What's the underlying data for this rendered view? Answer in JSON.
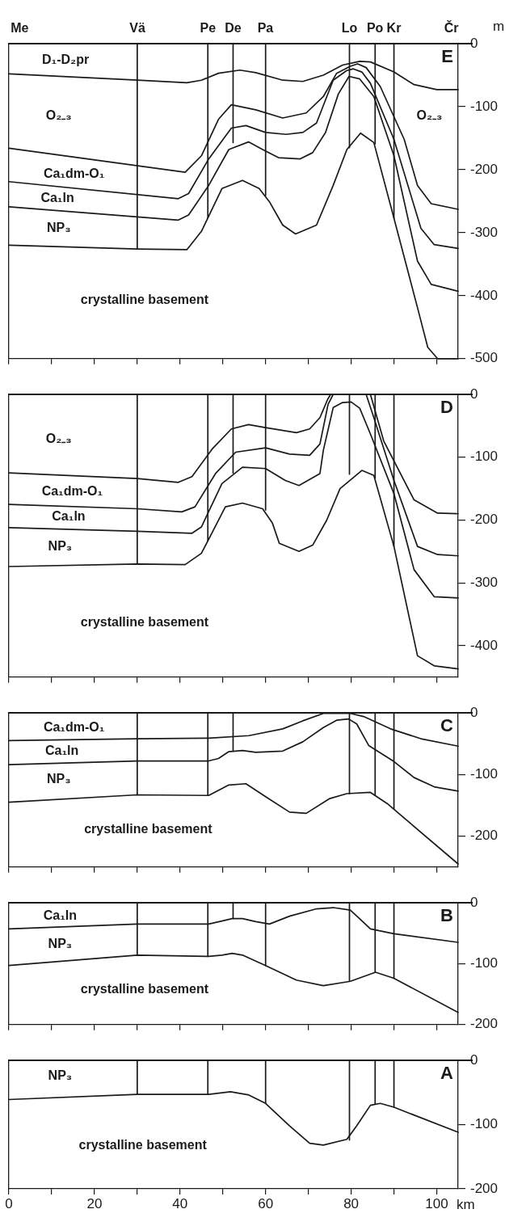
{
  "chart_data": [
    {
      "type": "line",
      "title": "E",
      "ylabel": "m",
      "xlim": [
        0,
        105
      ],
      "ylim": [
        -500,
        0
      ],
      "yticks": [
        0,
        -100,
        -200,
        -300,
        -400,
        -500
      ],
      "tick_labels": "y",
      "grid": false,
      "xticks": [
        0,
        {
          "value": 10,
          "label": null
        },
        20,
        {
          "value": 30,
          "label": null
        },
        40,
        {
          "value": 50,
          "label": null
        },
        60,
        {
          "value": 70,
          "label": null
        },
        80,
        {
          "value": 90,
          "label": null
        },
        100
      ],
      "series": [
        {
          "color": "#1a1a1a",
          "x": [
            0,
            30,
            41.6,
            45,
            49,
            54,
            57.7,
            64,
            68.7,
            73.5,
            78,
            82,
            84.5,
            90,
            94.7,
            100,
            105
          ],
          "values": [
            -48,
            -58,
            -62,
            -58,
            -47,
            -42,
            -46,
            -58,
            -60,
            -50,
            -34,
            -28,
            -29,
            -45,
            -65,
            -73,
            -73
          ]
        },
        {
          "color": "#1a1a1a",
          "x": [
            0,
            41.2,
            45,
            49,
            52,
            57.7,
            64,
            69.5,
            73.5,
            76.6,
            79.8,
            81.5,
            83.5,
            86.8,
            92.4,
            95.5,
            98.7,
            105
          ],
          "values": [
            -166,
            -204,
            -178,
            -120,
            -97,
            -105,
            -118,
            -110,
            -84,
            -47,
            -36,
            -32,
            -38,
            -68,
            -152,
            -225,
            -254,
            -263
          ]
        },
        {
          "color": "#1a1a1a",
          "x": [
            0,
            39.6,
            42,
            46.7,
            52,
            55.4,
            60,
            64.8,
            68.7,
            71.9,
            75.8,
            78.9,
            80.5,
            82.5,
            84.5,
            90,
            96.3,
            99.4,
            105
          ],
          "values": [
            -219,
            -246,
            -238,
            -183,
            -134,
            -130,
            -141,
            -144,
            -141,
            -126,
            -58,
            -43,
            -40,
            -45,
            -63,
            -152,
            -293,
            -319,
            -325
          ]
        },
        {
          "color": "#1a1a1a",
          "x": [
            0,
            39.6,
            42,
            46.7,
            51.4,
            56,
            59.3,
            63,
            68,
            71,
            74,
            77,
            79.5,
            82,
            85.3,
            90,
            95.5,
            98.7,
            105
          ],
          "values": [
            -259,
            -280,
            -272,
            -225,
            -168,
            -156,
            -168,
            -181,
            -183,
            -173,
            -141,
            -80,
            -52,
            -56,
            -84,
            -178,
            -345,
            -382,
            -393
          ]
        },
        {
          "color": "#1a1a1a",
          "x": [
            0,
            30,
            41.6,
            45,
            49.8,
            54.6,
            58.5,
            60.9,
            64,
            67,
            71.9,
            75.8,
            79,
            82.2,
            85.3,
            90,
            95.5,
            97.9,
            100.2,
            105
          ],
          "values": [
            -320,
            -326,
            -327,
            -298,
            -230,
            -217,
            -230,
            -251,
            -288,
            -302,
            -288,
            -225,
            -168,
            -142,
            -157,
            -277,
            -419,
            -482,
            -500,
            -500
          ]
        },
        {
          "color": "#1a1a1a",
          "x": [
            30,
            30
          ],
          "values": [
            0,
            -326
          ]
        },
        {
          "color": "#1a1a1a",
          "x": [
            46.5,
            46.5
          ],
          "values": [
            0,
            -276
          ]
        },
        {
          "color": "#1a1a1a",
          "x": [
            52.4,
            52.4
          ],
          "values": [
            0,
            -157
          ]
        },
        {
          "color": "#1a1a1a",
          "x": [
            60,
            60
          ],
          "values": [
            0,
            -241
          ]
        },
        {
          "color": "#1a1a1a",
          "x": [
            79.6,
            79.6
          ],
          "values": [
            0,
            -165
          ]
        },
        {
          "color": "#1a1a1a",
          "x": [
            85.6,
            85.6
          ],
          "values": [
            0,
            -159
          ]
        },
        {
          "color": "#1a1a1a",
          "x": [
            90,
            90
          ],
          "values": [
            0,
            -277
          ]
        }
      ],
      "annotations": [
        "D₁-D₂pr",
        "O₂₋₃",
        "Ca₁dm-O₁",
        "Ca₁ln",
        "NP₃",
        "crystalline basement",
        "O₂₋₃",
        "Me",
        "Vä",
        "Pe",
        "De",
        "Pa",
        "Lo",
        "Po",
        "Kr",
        "Čr"
      ]
    },
    {
      "type": "line",
      "title": "D",
      "xlim": [
        0,
        105
      ],
      "ylim": [
        -450,
        0
      ],
      "yticks": [
        0,
        -100,
        -200,
        -300,
        -400
      ],
      "tick_labels": "y",
      "grid": false,
      "xticks": [
        0,
        {
          "value": 10,
          "label": null
        },
        20,
        {
          "value": 30,
          "label": null
        },
        40,
        {
          "value": 50,
          "label": null
        },
        60,
        {
          "value": 70,
          "label": null
        },
        80,
        {
          "value": 90,
          "label": null
        },
        100
      ],
      "series": [
        {
          "color": "#1a1a1a",
          "x": [
            0,
            30,
            39.6,
            42.8,
            47.5,
            52,
            56,
            60,
            67.2,
            70.3,
            72.7,
            74.5,
            75.2,
            79.5,
            84.5,
            87.6,
            94.7,
            100.2,
            105
          ],
          "values": [
            -125,
            -134,
            -140,
            -131,
            -87,
            -55,
            -48,
            -53,
            -61,
            -55,
            -37,
            -8,
            0,
            null,
            0,
            -74,
            -168,
            -189,
            -190
          ]
        },
        {
          "color": "#1a1a1a",
          "x": [
            0,
            30,
            40.4,
            43.5,
            48.3,
            53,
            60,
            65.6,
            70.3,
            72.7,
            74.6,
            75.8,
            79.5,
            83.5,
            85.3,
            90,
            95.5,
            100.2,
            105
          ],
          "values": [
            -175,
            -182,
            -187,
            -179,
            -126,
            -92,
            -85,
            -95,
            -97,
            -79,
            -16,
            0,
            null,
            0,
            -37,
            -137,
            -242,
            -255,
            -257
          ]
        },
        {
          "color": "#1a1a1a",
          "x": [
            0,
            30,
            42.8,
            45,
            49.8,
            54.6,
            60,
            64.6,
            67.8,
            72.7,
            73.5,
            75.8,
            78,
            80,
            82,
            84.5,
            90,
            94.7,
            99.4,
            105
          ],
          "values": [
            -212,
            -218,
            -221,
            -211,
            -142,
            -116,
            -118,
            -137,
            -145,
            -126,
            -89,
            -21,
            -13,
            -12,
            -22,
            -63,
            -158,
            -279,
            -322,
            -324
          ]
        },
        {
          "color": "#1a1a1a",
          "x": [
            0,
            30,
            41.2,
            45,
            50.6,
            54.6,
            59.3,
            61.6,
            63.2,
            67.8,
            71,
            74.3,
            77.4,
            82.5,
            85.3,
            90,
            95.5,
            99.4,
            105
          ],
          "values": [
            -274,
            -270,
            -271,
            -253,
            -179,
            -173,
            -182,
            -205,
            -237,
            -250,
            -240,
            -200,
            -150,
            -121,
            -129,
            -242,
            -416,
            -432,
            -437
          ]
        },
        {
          "color": "#1a1a1a",
          "x": [
            30,
            30
          ],
          "values": [
            0,
            -270
          ]
        },
        {
          "color": "#1a1a1a",
          "x": [
            46.5,
            46.5
          ],
          "values": [
            0,
            -233
          ]
        },
        {
          "color": "#1a1a1a",
          "x": [
            52.4,
            52.4
          ],
          "values": [
            0,
            -125
          ]
        },
        {
          "color": "#1a1a1a",
          "x": [
            60,
            60
          ],
          "values": [
            0,
            -184
          ]
        },
        {
          "color": "#1a1a1a",
          "x": [
            79.6,
            79.6
          ],
          "values": [
            0,
            -127
          ]
        },
        {
          "color": "#1a1a1a",
          "x": [
            85.6,
            85.6
          ],
          "values": [
            0,
            -133
          ]
        },
        {
          "color": "#1a1a1a",
          "x": [
            90,
            90
          ],
          "values": [
            0,
            -242
          ]
        }
      ],
      "annotations": [
        "O₂₋₃",
        "Ca₁dm-O₁",
        "Ca₁ln",
        "NP₃",
        "crystalline basement"
      ]
    },
    {
      "type": "line",
      "title": "C",
      "xlim": [
        0,
        105
      ],
      "ylim": [
        -250,
        0
      ],
      "yticks": [
        0,
        -100,
        -200
      ],
      "tick_labels": "y",
      "grid": false,
      "xticks": [
        0,
        {
          "value": 10,
          "label": null
        },
        20,
        {
          "value": 30,
          "label": null
        },
        40,
        {
          "value": 50,
          "label": null
        },
        60,
        {
          "value": 70,
          "label": null
        },
        80,
        {
          "value": 90,
          "label": null
        },
        100
      ],
      "series": [
        {
          "color": "#1a1a1a",
          "x": [
            0,
            30,
            46.7,
            56.1,
            64,
            68.7,
            73.5,
            79.8,
            82.9,
            89.2,
            96.3,
            105
          ],
          "values": [
            -45,
            -42,
            -41,
            -37,
            -26,
            -13,
            -1,
            -1,
            -6,
            -26,
            -42,
            -54
          ]
        },
        {
          "color": "#1a1a1a",
          "x": [
            0,
            30,
            46.7,
            49,
            51.4,
            54.6,
            57.7,
            64,
            68.7,
            73.5,
            76.6,
            79.4,
            81.3,
            84.1,
            90,
            94.7,
            99.4,
            105
          ],
          "values": [
            -84,
            -78,
            -78,
            -74,
            -63,
            -61,
            -64,
            -62,
            -47,
            -24,
            -12,
            -10,
            -18,
            -53,
            -79,
            -105,
            -120,
            -127
          ]
        },
        {
          "color": "#1a1a1a",
          "x": [
            0,
            30,
            46.7,
            51.4,
            55.4,
            60,
            65.6,
            69.5,
            75,
            79,
            84.5,
            88.4,
            105
          ],
          "values": [
            -145,
            -133,
            -134,
            -117,
            -115,
            -136,
            -161,
            -163,
            -139,
            -131,
            -129,
            -147,
            -245
          ]
        },
        {
          "color": "#1a1a1a",
          "x": [
            30,
            30
          ],
          "values": [
            0,
            -133
          ]
        },
        {
          "color": "#1a1a1a",
          "x": [
            46.5,
            46.5
          ],
          "values": [
            0,
            -134
          ]
        },
        {
          "color": "#1a1a1a",
          "x": [
            52.4,
            52.4
          ],
          "values": [
            0,
            -62
          ]
        },
        {
          "color": "#1a1a1a",
          "x": [
            79.6,
            79.6
          ],
          "values": [
            0,
            -131
          ]
        },
        {
          "color": "#1a1a1a",
          "x": [
            85.6,
            85.6
          ],
          "values": [
            0,
            -134
          ]
        },
        {
          "color": "#1a1a1a",
          "x": [
            90,
            90
          ],
          "values": [
            0,
            -156
          ]
        }
      ],
      "annotations": [
        "Ca₁dm-O₁",
        "Ca₁ln",
        "NP₃",
        "crystalline basement"
      ]
    },
    {
      "type": "line",
      "title": "B",
      "xlim": [
        0,
        105
      ],
      "ylim": [
        -200,
        0
      ],
      "yticks": [
        0,
        -100,
        -200
      ],
      "tick_labels": "y",
      "grid": false,
      "xticks": [
        0,
        {
          "value": 10,
          "label": null
        },
        20,
        {
          "value": 30,
          "label": null
        },
        40,
        {
          "value": 50,
          "label": null
        },
        60,
        {
          "value": 70,
          "label": null
        },
        80,
        {
          "value": 90,
          "label": null
        },
        100
      ],
      "series": [
        {
          "color": "#1a1a1a",
          "x": [
            0,
            30,
            46.7,
            49.8,
            52.2,
            54.6,
            57.7,
            60.9,
            65.6,
            71.9,
            75.8,
            79.8,
            82.1,
            84.5,
            90,
            105
          ],
          "values": [
            -43,
            -35,
            -35,
            -30,
            -26,
            -26,
            -31,
            -35,
            -22,
            -10,
            -8,
            -12,
            -27,
            -43,
            -51,
            -65
          ]
        },
        {
          "color": "#1a1a1a",
          "x": [
            0,
            30,
            46.7,
            49.8,
            52.2,
            54.6,
            60,
            67.2,
            73.5,
            79.8,
            85.7,
            90,
            105
          ],
          "values": [
            -103,
            -86,
            -88,
            -86,
            -83,
            -86,
            -103,
            -127,
            -136,
            -129,
            -114,
            -124,
            -180
          ]
        },
        {
          "color": "#1a1a1a",
          "x": [
            30,
            30
          ],
          "values": [
            0,
            -86
          ]
        },
        {
          "color": "#1a1a1a",
          "x": [
            46.5,
            46.5
          ],
          "values": [
            0,
            -88
          ]
        },
        {
          "color": "#1a1a1a",
          "x": [
            52.4,
            52.4
          ],
          "values": [
            0,
            -26
          ]
        },
        {
          "color": "#1a1a1a",
          "x": [
            60,
            60
          ],
          "values": [
            0,
            -103
          ]
        },
        {
          "color": "#1a1a1a",
          "x": [
            79.6,
            79.6
          ],
          "values": [
            0,
            -129
          ]
        },
        {
          "color": "#1a1a1a",
          "x": [
            85.6,
            85.6
          ],
          "values": [
            0,
            -114
          ]
        },
        {
          "color": "#1a1a1a",
          "x": [
            90,
            90
          ],
          "values": [
            0,
            -124
          ]
        }
      ],
      "annotations": [
        "Ca₁ln",
        "NP₃",
        "crystalline basement"
      ]
    },
    {
      "type": "line",
      "title": "A",
      "xlabel": "km",
      "xlim": [
        0,
        105
      ],
      "ylim": [
        -200,
        0
      ],
      "yticks": [
        0,
        -100,
        -200
      ],
      "grid": false,
      "xticks": [
        0,
        {
          "value": 10,
          "label": null
        },
        20,
        {
          "value": 30,
          "label": null
        },
        40,
        {
          "value": 50,
          "label": null
        },
        60,
        {
          "value": 70,
          "label": null
        },
        80,
        {
          "value": 90,
          "label": null
        },
        100
      ],
      "series": [
        {
          "color": "#1a1a1a",
          "x": [
            0,
            30,
            46.7,
            51.8,
            56.1,
            60,
            65.6,
            70.3,
            73.5,
            79,
            81.3,
            84.5,
            86.8,
            90,
            105
          ],
          "values": [
            -61,
            -53,
            -53,
            -49,
            -54,
            -67,
            -102,
            -129,
            -132,
            -123,
            -102,
            -70,
            -67,
            -73,
            -112
          ]
        },
        {
          "color": "#1a1a1a",
          "x": [
            30,
            30
          ],
          "values": [
            0,
            -53
          ]
        },
        {
          "color": "#1a1a1a",
          "x": [
            46.5,
            46.5
          ],
          "values": [
            0,
            -53
          ]
        },
        {
          "color": "#1a1a1a",
          "x": [
            60,
            60
          ],
          "values": [
            0,
            -67
          ]
        },
        {
          "color": "#1a1a1a",
          "x": [
            79.6,
            79.6
          ],
          "values": [
            0,
            -124
          ]
        },
        {
          "color": "#1a1a1a",
          "x": [
            85.6,
            85.6
          ],
          "values": [
            0,
            -68
          ]
        },
        {
          "color": "#1a1a1a",
          "x": [
            90,
            90
          ],
          "values": [
            0,
            -73
          ]
        }
      ],
      "annotations": [
        "NP₃",
        "crystalline basement"
      ]
    }
  ]
}
